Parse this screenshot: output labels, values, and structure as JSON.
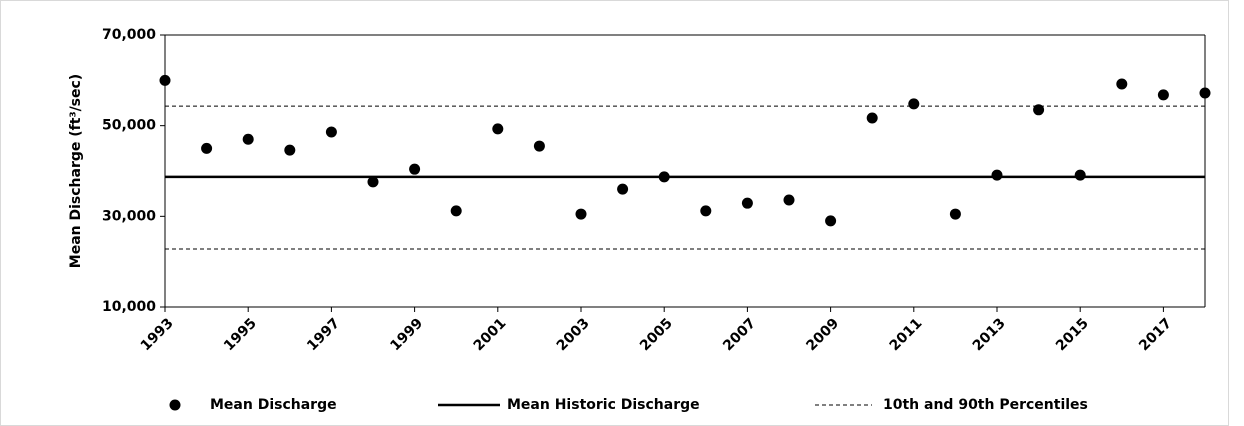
{
  "chart_data": {
    "type": "scatter",
    "y_label": "Mean Discharge  (ft³/sec)",
    "x": [
      1993,
      1994,
      1995,
      1996,
      1997,
      1998,
      1999,
      2000,
      2001,
      2002,
      2003,
      2004,
      2005,
      2006,
      2007,
      2008,
      2009,
      2010,
      2011,
      2012,
      2013,
      2014,
      2015,
      2016,
      2017,
      2018
    ],
    "series": [
      {
        "name": "Mean Discharge",
        "color": "#000000",
        "values": [
          60000,
          45000,
          47000,
          44600,
          48600,
          37600,
          40400,
          31200,
          49300,
          45500,
          30500,
          36000,
          38700,
          31200,
          32900,
          33600,
          29000,
          51700,
          54800,
          30500,
          39100,
          53500,
          39100,
          59200,
          56800,
          57200
        ]
      }
    ],
    "mean_line": {
      "name": "Mean Historic Discharge",
      "value": 38700,
      "color": "#000000"
    },
    "percentile_lines": {
      "name": "10th and 90th Percentiles",
      "values": [
        22800,
        54300
      ],
      "color": "#000000"
    },
    "xlim": [
      1993,
      2018
    ],
    "xticks": [
      1993,
      1995,
      1997,
      1999,
      2001,
      2003,
      2005,
      2007,
      2009,
      2011,
      2013,
      2015,
      2017
    ],
    "ylim": [
      10000,
      70000
    ],
    "yticks": [
      {
        "value": 10000,
        "label": "10,000"
      },
      {
        "value": 30000,
        "label": "30,000"
      },
      {
        "value": 50000,
        "label": "50,000"
      },
      {
        "value": 70000,
        "label": "70,000"
      }
    ],
    "grid": false
  }
}
